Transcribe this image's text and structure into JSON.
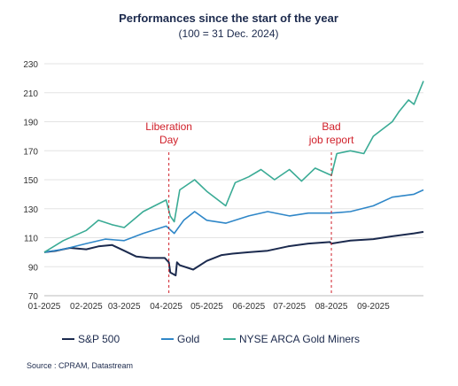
{
  "chart_data": {
    "type": "line",
    "title": "Performances since the start of the year",
    "subtitle": "(100 = 31 Dec. 2024)",
    "xlabel": "",
    "ylabel": "",
    "x_tick_labels": [
      "01-2025",
      "02-2025",
      "03-2025",
      "04-2025",
      "05-2025",
      "06-2025",
      "07-2025",
      "08-2025",
      "09-2025"
    ],
    "y_ticks": [
      70,
      90,
      110,
      130,
      150,
      170,
      190,
      210,
      230
    ],
    "ylim": [
      70,
      230
    ],
    "xlim": [
      "2025-01-01",
      "2025-10-08"
    ],
    "grid": "horizontal",
    "legend_position": "bottom",
    "series": [
      {
        "name": "S&P 500",
        "color": "#1b2a4e",
        "points": [
          [
            "2025-01-01",
            100
          ],
          [
            "2025-01-10",
            101
          ],
          [
            "2025-01-20",
            103
          ],
          [
            "2025-02-01",
            102
          ],
          [
            "2025-02-10",
            104
          ],
          [
            "2025-02-20",
            105
          ],
          [
            "2025-03-01",
            101
          ],
          [
            "2025-03-10",
            97
          ],
          [
            "2025-03-20",
            96
          ],
          [
            "2025-03-31",
            96
          ],
          [
            "2025-04-03",
            93
          ],
          [
            "2025-04-04",
            86
          ],
          [
            "2025-04-08",
            84
          ],
          [
            "2025-04-09",
            93
          ],
          [
            "2025-04-11",
            91
          ],
          [
            "2025-04-21",
            88
          ],
          [
            "2025-05-01",
            94
          ],
          [
            "2025-05-12",
            98
          ],
          [
            "2025-05-20",
            99
          ],
          [
            "2025-06-01",
            100
          ],
          [
            "2025-06-15",
            101
          ],
          [
            "2025-06-30",
            104
          ],
          [
            "2025-07-15",
            106
          ],
          [
            "2025-07-31",
            107
          ],
          [
            "2025-08-01",
            106
          ],
          [
            "2025-08-15",
            108
          ],
          [
            "2025-09-01",
            109
          ],
          [
            "2025-09-15",
            111
          ],
          [
            "2025-10-01",
            113
          ],
          [
            "2025-10-08",
            114
          ]
        ]
      },
      {
        "name": "Gold",
        "color": "#2f87c8",
        "points": [
          [
            "2025-01-01",
            100
          ],
          [
            "2025-01-15",
            102
          ],
          [
            "2025-02-01",
            106
          ],
          [
            "2025-02-15",
            109
          ],
          [
            "2025-03-01",
            108
          ],
          [
            "2025-03-15",
            113
          ],
          [
            "2025-04-01",
            118
          ],
          [
            "2025-04-07",
            113
          ],
          [
            "2025-04-14",
            122
          ],
          [
            "2025-04-22",
            128
          ],
          [
            "2025-05-01",
            122
          ],
          [
            "2025-05-15",
            120
          ],
          [
            "2025-06-01",
            125
          ],
          [
            "2025-06-15",
            128
          ],
          [
            "2025-07-01",
            125
          ],
          [
            "2025-07-15",
            127
          ],
          [
            "2025-08-01",
            127
          ],
          [
            "2025-08-15",
            128
          ],
          [
            "2025-09-01",
            132
          ],
          [
            "2025-09-15",
            138
          ],
          [
            "2025-10-01",
            140
          ],
          [
            "2025-10-08",
            143
          ]
        ]
      },
      {
        "name": "NYSE ARCA Gold Miners",
        "color": "#3aab95",
        "points": [
          [
            "2025-01-01",
            100
          ],
          [
            "2025-01-15",
            108
          ],
          [
            "2025-02-01",
            115
          ],
          [
            "2025-02-10",
            122
          ],
          [
            "2025-02-20",
            119
          ],
          [
            "2025-03-01",
            117
          ],
          [
            "2025-03-15",
            128
          ],
          [
            "2025-04-01",
            136
          ],
          [
            "2025-04-04",
            125
          ],
          [
            "2025-04-07",
            121
          ],
          [
            "2025-04-11",
            143
          ],
          [
            "2025-04-22",
            150
          ],
          [
            "2025-05-01",
            142
          ],
          [
            "2025-05-15",
            132
          ],
          [
            "2025-05-22",
            148
          ],
          [
            "2025-06-01",
            152
          ],
          [
            "2025-06-10",
            157
          ],
          [
            "2025-06-20",
            150
          ],
          [
            "2025-07-01",
            157
          ],
          [
            "2025-07-10",
            149
          ],
          [
            "2025-07-20",
            158
          ],
          [
            "2025-08-01",
            153
          ],
          [
            "2025-08-05",
            168
          ],
          [
            "2025-08-15",
            170
          ],
          [
            "2025-08-25",
            168
          ],
          [
            "2025-09-01",
            180
          ],
          [
            "2025-09-15",
            190
          ],
          [
            "2025-09-20",
            197
          ],
          [
            "2025-09-27",
            205
          ],
          [
            "2025-10-01",
            202
          ],
          [
            "2025-10-08",
            218
          ]
        ]
      }
    ],
    "annotations": [
      {
        "date": "2025-04-03",
        "lines": [
          "Liberation",
          "Day"
        ],
        "color": "#d0202a"
      },
      {
        "date": "2025-08-01",
        "lines": [
          "Bad",
          "job report"
        ],
        "color": "#d0202a"
      }
    ]
  },
  "source": "Source : CPRAM, Datastream"
}
